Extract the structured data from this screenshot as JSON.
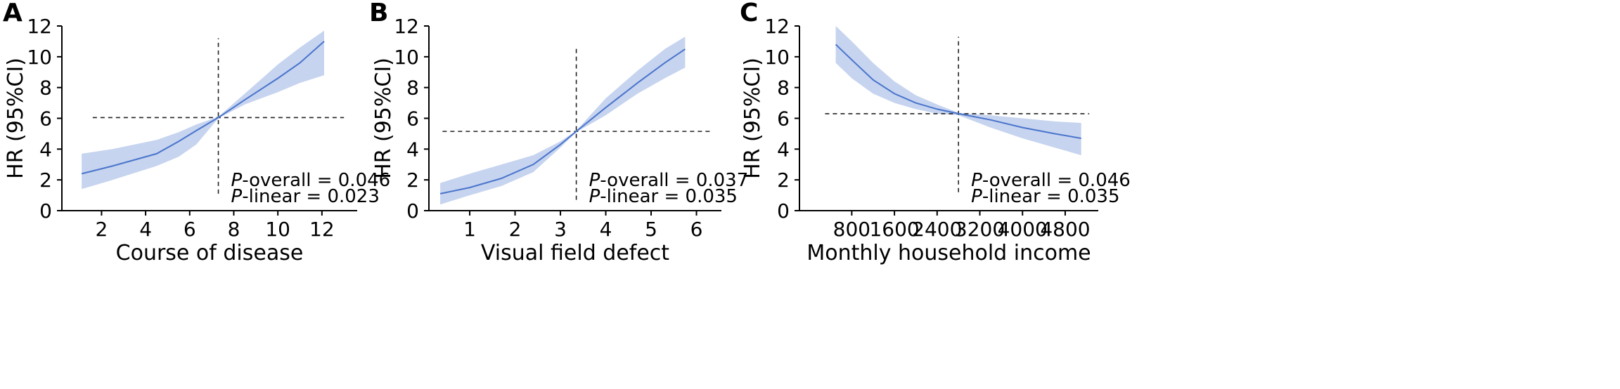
{
  "chart_data": [
    {
      "panel": "A",
      "type": "line",
      "xlabel": "Course of disease",
      "ylabel": "HR (95%CI)",
      "xlim": [
        0.2,
        13.6
      ],
      "ylim": [
        0,
        12
      ],
      "xticks": [
        2,
        4,
        6,
        8,
        10,
        12
      ],
      "yticks": [
        0,
        2,
        4,
        6,
        8,
        10,
        12
      ],
      "ref_x": 7.3,
      "ref_y": 6.05,
      "ref_hline_range": [
        1.6,
        13.0
      ],
      "ref_vline_range": [
        1.1,
        11.2
      ],
      "series": [
        {
          "x": [
            1.1,
            2.5,
            4.5,
            5.5,
            6.3,
            7.3,
            8.5,
            10,
            11,
            12.1
          ],
          "y": [
            2.4,
            2.9,
            3.7,
            4.5,
            5.2,
            6.05,
            7.2,
            8.6,
            9.6,
            11.0
          ],
          "lower": [
            1.4,
            2.0,
            2.9,
            3.5,
            4.3,
            6.0,
            6.9,
            7.7,
            8.3,
            8.8
          ],
          "upper": [
            3.7,
            4.0,
            4.6,
            5.1,
            5.6,
            6.1,
            7.6,
            9.5,
            10.6,
            11.7
          ]
        }
      ],
      "annotations": [
        {
          "label": "P",
          "text": "-overall = 0.046"
        },
        {
          "label": "P",
          "text": "-linear = 0.023"
        }
      ]
    },
    {
      "panel": "B",
      "type": "line",
      "xlabel": "Visual field defect",
      "ylabel": "HR (95%CI)",
      "xlim": [
        0.1,
        6.55
      ],
      "ylim": [
        0,
        12
      ],
      "xticks": [
        1,
        2,
        3,
        4,
        5,
        6
      ],
      "yticks": [
        0,
        2,
        4,
        6,
        8,
        10,
        12
      ],
      "ref_x": 3.35,
      "ref_y": 5.15,
      "ref_hline_range": [
        0.4,
        6.3
      ],
      "ref_vline_range": [
        0.7,
        10.7
      ],
      "series": [
        {
          "x": [
            0.35,
            1.0,
            1.7,
            2.4,
            3.0,
            3.35,
            4.0,
            4.7,
            5.3,
            5.75
          ],
          "y": [
            1.1,
            1.5,
            2.1,
            3.0,
            4.3,
            5.15,
            6.7,
            8.3,
            9.6,
            10.5
          ],
          "lower": [
            0.4,
            1.0,
            1.6,
            2.5,
            4.1,
            5.1,
            6.2,
            7.6,
            8.6,
            9.3
          ],
          "upper": [
            1.8,
            2.4,
            3.0,
            3.6,
            4.5,
            5.2,
            7.3,
            9.1,
            10.5,
            11.3
          ]
        }
      ],
      "annotations": [
        {
          "label": "P",
          "text": "-overall = 0.037"
        },
        {
          "label": "P",
          "text": "-linear = 0.035"
        }
      ]
    },
    {
      "panel": "C",
      "type": "line",
      "xlabel": "Monthly household income",
      "ylabel": "HR (95%CI)",
      "xlim": [
        -180,
        5420
      ],
      "ylim": [
        0,
        12
      ],
      "xticks": [
        800,
        1600,
        2400,
        3200,
        4000,
        4800
      ],
      "yticks": [
        0,
        2,
        4,
        6,
        8,
        10,
        12
      ],
      "ref_x": 2800,
      "ref_y": 6.3,
      "ref_hline_range": [
        300,
        5250
      ],
      "ref_vline_range": [
        1.2,
        11.3
      ],
      "series": [
        {
          "x": [
            500,
            800,
            1200,
            1600,
            2000,
            2400,
            2800,
            3400,
            4000,
            4600,
            5100
          ],
          "y": [
            10.8,
            9.8,
            8.5,
            7.6,
            7.0,
            6.6,
            6.3,
            5.9,
            5.4,
            5.0,
            4.7
          ],
          "lower": [
            9.6,
            8.6,
            7.6,
            7.0,
            6.6,
            6.3,
            6.2,
            5.4,
            4.7,
            4.1,
            3.6
          ],
          "upper": [
            12.0,
            11.0,
            9.6,
            8.4,
            7.5,
            6.9,
            6.35,
            6.2,
            6.0,
            5.8,
            5.7
          ]
        }
      ],
      "annotations": [
        {
          "label": "P",
          "text": "-overall = 0.046"
        },
        {
          "label": "P",
          "text": "-linear = 0.035"
        }
      ]
    }
  ],
  "colors": {
    "line": "#4a74cc",
    "band": "#c6d4ef",
    "reference": "#222222",
    "axis": "#000000"
  }
}
